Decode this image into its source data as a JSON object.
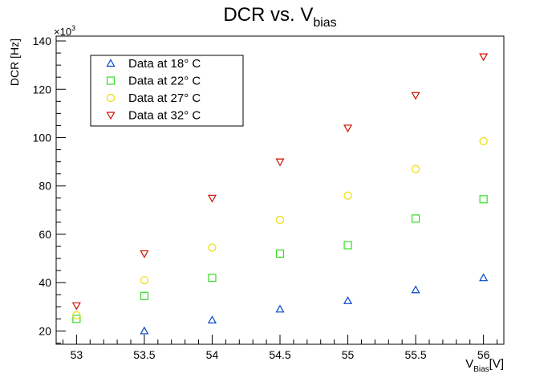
{
  "chart_data": {
    "type": "scatter",
    "title": "DCR vs. V",
    "title_sub": "bias",
    "xlabel_main": "V",
    "xlabel_sub": "Bias",
    "xlabel_unit": "[V]",
    "ylabel": "DCR [Hz]",
    "yexp": "×10",
    "yexp_pow": "3",
    "xlim": [
      52.85,
      56.15
    ],
    "ylim": [
      14.5,
      142
    ],
    "x_ticks": [
      53,
      53.5,
      54,
      54.5,
      55,
      55.5,
      56
    ],
    "y_ticks": [
      20,
      40,
      60,
      80,
      100,
      120,
      140
    ],
    "grid": false,
    "legend_placement": "top-left",
    "series": [
      {
        "name": "Data at 18° C",
        "color": "#0044cc",
        "marker": "triangle-up",
        "x": [
          53.5,
          54,
          54.5,
          55,
          55.5,
          56
        ],
        "y": [
          20.0,
          24.5,
          29.0,
          32.5,
          37.0,
          42.0
        ]
      },
      {
        "name": "Data at 22° C",
        "color": "#33dd22",
        "marker": "square",
        "x": [
          53,
          53.5,
          54,
          54.5,
          55,
          55.5,
          56
        ],
        "y": [
          25.0,
          34.5,
          42.0,
          52.0,
          55.5,
          66.5,
          74.5
        ]
      },
      {
        "name": "Data at 27° C",
        "color": "#eedd00",
        "marker": "circle",
        "x": [
          53,
          53.5,
          54,
          54.5,
          55,
          55.5,
          56
        ],
        "y": [
          26.5,
          41.0,
          54.5,
          66.0,
          76.0,
          87.0,
          98.5
        ]
      },
      {
        "name": "Data at 32° C",
        "color": "#cc1100",
        "marker": "triangle-down",
        "x": [
          53,
          53.5,
          54,
          54.5,
          55,
          55.5,
          56
        ],
        "y": [
          30.5,
          52.0,
          75.0,
          90.0,
          104.0,
          117.5,
          133.5
        ]
      }
    ]
  }
}
